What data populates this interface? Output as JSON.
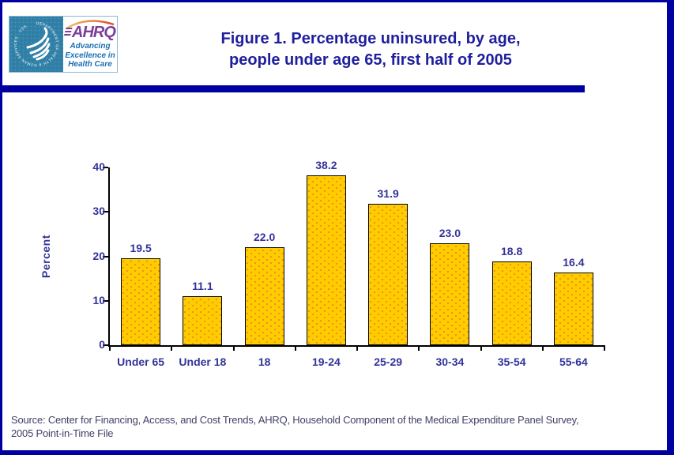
{
  "slide": {
    "title_lines": [
      "Figure 1. Percentage uninsured, by age,",
      "people under age 65, first half of 2005"
    ],
    "source_lines": [
      "Source: Center for Financing, Access, and Cost Trends, AHRQ, Household Component of the Medical Expenditure Panel Survey,",
      "2005 Point-in-Time File"
    ]
  },
  "logo": {
    "hhs_circle_text": "DEPARTMENT OF HEALTH & HUMAN SERVICES · USA",
    "ahrq_acronym": "AHRQ",
    "tagline_lines": [
      "Advancing",
      "Excellence in",
      "Health Care"
    ]
  },
  "chart_data": {
    "type": "bar",
    "title": "Figure 1. Percentage uninsured, by age, people under age 65, first half of 2005",
    "categories": [
      "Under 65",
      "Under 18",
      "18",
      "19-24",
      "25-29",
      "30-34",
      "35-54",
      "55-64"
    ],
    "values": [
      19.5,
      11.1,
      22.0,
      38.2,
      31.9,
      23.0,
      18.8,
      16.4
    ],
    "value_labels": [
      "19.5",
      "11.1",
      "22.0",
      "38.2",
      "31.9",
      "23.0",
      "18.8",
      "16.4"
    ],
    "xlabel": "",
    "ylabel": "Percent",
    "ylim": [
      0,
      40
    ],
    "yticks": [
      0,
      10,
      20,
      30,
      40
    ],
    "grid": false,
    "legend": "none",
    "bar_fill": "#FFCC00",
    "bar_dot": "#EE8A1E",
    "bar_border": "#000000",
    "axis_color": "#000000",
    "text_color": "#333399"
  },
  "colors": {
    "frame_navy": "#0000A0",
    "title_navy": "#1F1F9E",
    "hhs_teal": "#2F7FA6",
    "ahrq_purple": "#7B3F98",
    "tagline_blue": "#1B6FB5",
    "source_text": "#404068"
  }
}
